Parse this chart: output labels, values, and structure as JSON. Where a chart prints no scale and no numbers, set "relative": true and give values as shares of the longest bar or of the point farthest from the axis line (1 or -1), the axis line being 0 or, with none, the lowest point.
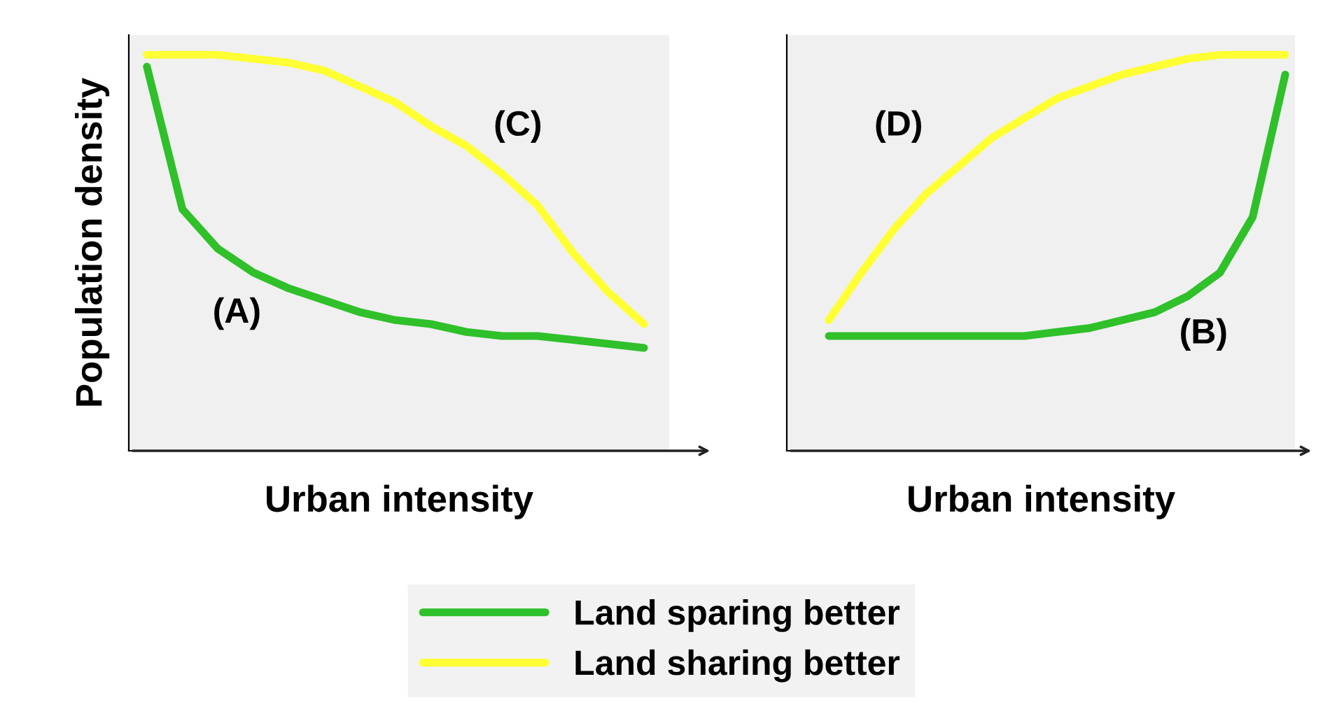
{
  "chart_data": [
    {
      "type": "line",
      "relative": true,
      "ylabel": "Population density",
      "xlabel": "Urban intensity",
      "tick_labels": false,
      "grid": false,
      "legend": "bottom",
      "marker": "none",
      "line_style": "solid",
      "categories": [
        null,
        null,
        null,
        null,
        null,
        null,
        null,
        null,
        null,
        null,
        null,
        null,
        null,
        null,
        null
      ],
      "series": [
        {
          "name": "Land sparing better",
          "color": "#2fc02a",
          "values": [
            0.97,
            0.61,
            0.51,
            0.45,
            0.41,
            0.38,
            0.35,
            0.33,
            0.32,
            0.3,
            0.29,
            0.29,
            0.28,
            0.27,
            0.26
          ]
        },
        {
          "name": "Land sharing better",
          "color": "#ffff33",
          "values": [
            1,
            1,
            1,
            0.99,
            0.98,
            0.96,
            0.92,
            0.88,
            0.82,
            0.77,
            0.7,
            0.62,
            0.5,
            0.4,
            0.32
          ]
        }
      ],
      "annotations": [
        "(A)",
        "(C)"
      ]
    },
    {
      "type": "line",
      "relative": true,
      "xlabel": "Urban intensity",
      "tick_labels": false,
      "grid": false,
      "legend": false,
      "marker": "none",
      "line_style": "solid",
      "categories": [
        null,
        null,
        null,
        null,
        null,
        null,
        null,
        null,
        null,
        null,
        null,
        null,
        null,
        null,
        null
      ],
      "series": [
        {
          "color": "#2fc02a",
          "values": [
            0.29,
            0.29,
            0.29,
            0.29,
            0.29,
            0.29,
            0.29,
            0.3,
            0.31,
            0.33,
            0.35,
            0.39,
            0.45,
            0.59,
            0.95
          ]
        },
        {
          "color": "#ffff33",
          "values": [
            0.33,
            0.45,
            0.56,
            0.65,
            0.72,
            0.79,
            0.84,
            0.89,
            0.92,
            0.95,
            0.97,
            0.99,
            1,
            1,
            1
          ]
        }
      ],
      "annotations": [
        "(D)",
        "(B)"
      ]
    }
  ]
}
